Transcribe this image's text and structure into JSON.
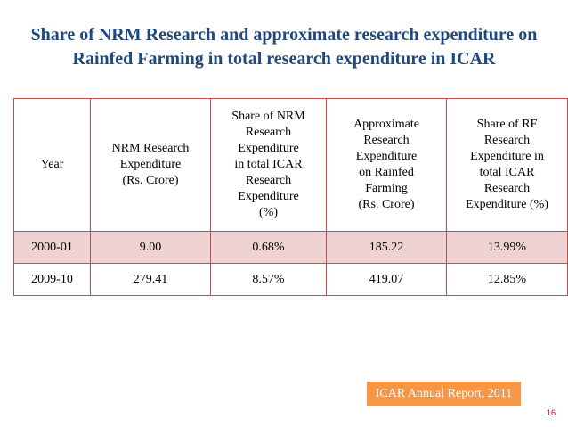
{
  "title": {
    "line1": "Share of NRM Research and approximate research expenditure on",
    "line2": "Rainfed Farming in total research expenditure in ICAR"
  },
  "table": {
    "headers": [
      [
        "Year"
      ],
      [
        "NRM Research",
        "Expenditure",
        "(Rs. Crore)"
      ],
      [
        "Share of NRM",
        "Research",
        "Expenditure",
        "in total  ICAR",
        "Research",
        "Expenditure",
        "(%)"
      ],
      [
        "Approximate",
        "Research",
        "Expenditure",
        "on Rainfed",
        "Farming",
        "(Rs. Crore)"
      ],
      [
        "Share of RF",
        "Research",
        "Expenditure in",
        "total  ICAR",
        "Research",
        "Expenditure (%)"
      ]
    ],
    "rows": [
      [
        "2000-01",
        "9.00",
        "0.68%",
        "185.22",
        "13.99%"
      ],
      [
        "2009-10",
        "279.41",
        "8.57%",
        "419.07",
        "12.85%"
      ]
    ]
  },
  "source_label": "ICAR Annual Report, 2011",
  "page_number": "16",
  "colors": {
    "title": "#1f497d",
    "border": "#c0504d",
    "band_row": "#efd3d2",
    "source_bg": "#f79646",
    "page_number": "#c00000"
  }
}
